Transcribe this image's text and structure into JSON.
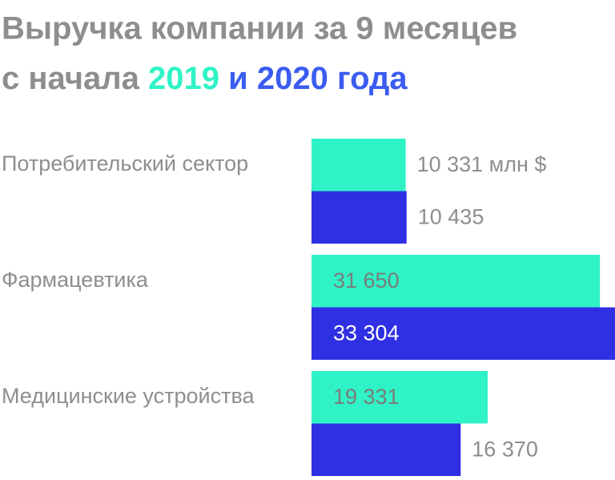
{
  "chart_data": {
    "type": "bar",
    "orientation": "horizontal",
    "title": "Выручка компании за 9 месяцев",
    "title_prefix": "с начала",
    "title_joiner": "и",
    "title_suffix": "года",
    "categories": [
      "Потребительский сектор",
      "Фармацевтика",
      "Медицинские устройства"
    ],
    "series": [
      {
        "name": "2019",
        "color": "#2ff3c6",
        "values": [
          10331,
          31650,
          19331
        ],
        "value_labels": [
          "10 331 млн $",
          "31 650",
          "19 331"
        ]
      },
      {
        "name": "2020",
        "color": "#2f2fe4",
        "values": [
          10435,
          33304,
          16370
        ],
        "value_labels": [
          "10 435",
          "33 304",
          "16 370"
        ]
      }
    ]
  }
}
